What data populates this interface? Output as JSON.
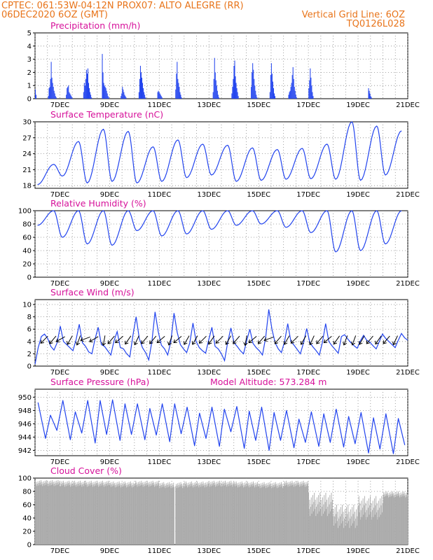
{
  "header": {
    "line1_left": "CPTEC:   061:53W-04:12N   PROX07: ALTO ALEGRE (RR)",
    "line2_left": "06DEC2020 6OZ (GMT)",
    "line2_right": "Vertical Grid Line: 6OZ",
    "line3_right": "TQ0126L028"
  },
  "colors": {
    "header": "#e8741a",
    "title": "#d6119a",
    "line": "#2244ee",
    "bar": "#2244ee",
    "cloud": "#aaaaaa",
    "wind_arrow": "#000000"
  },
  "chart_data": [
    {
      "type": "bar",
      "title": "Precipitation (mm/h)",
      "x_ticks": [
        "7DEC",
        "9DEC",
        "11DEC",
        "13DEC",
        "15DEC",
        "17DEC",
        "19DEC",
        "21DEC"
      ],
      "y_ticks": [
        "0",
        "1",
        "2",
        "3",
        "4",
        "5"
      ],
      "ylim": [
        0,
        5
      ],
      "grid": true,
      "note": "hourly precipitation, values from 06DEC 00Z",
      "values": [
        0.7,
        0.3,
        0,
        0,
        0,
        0,
        0,
        0,
        0,
        0,
        0,
        0,
        0,
        0,
        0,
        0,
        0,
        0,
        0.2,
        0.8,
        0.9,
        1.5,
        2.8,
        1.6,
        1.2,
        0.9,
        0.6,
        0.4,
        0.2,
        0.1,
        0,
        0,
        0,
        0,
        0,
        0,
        0,
        0,
        0,
        0,
        0,
        0,
        0,
        0.3,
        0.8,
        0.9,
        1.0,
        0.5,
        0.4,
        0.3,
        0.2,
        0.1,
        0,
        0,
        0,
        0,
        0,
        0,
        0,
        0,
        0,
        0,
        0,
        0,
        0,
        0,
        0,
        0.5,
        1.2,
        1.0,
        1.5,
        2.2,
        1.9,
        2.3,
        1.2,
        0.8,
        0.5,
        0.3,
        0.1,
        0,
        0,
        0,
        0,
        0,
        0,
        0,
        0,
        0,
        0,
        0,
        0,
        0,
        0,
        3.4,
        2.0,
        1.2,
        1.0,
        0.9,
        0.8,
        0.6,
        0.4,
        0.2,
        0.1,
        0,
        0,
        0,
        0,
        0,
        0,
        0,
        0,
        0,
        0,
        0,
        0,
        0,
        0,
        0,
        0,
        0.2,
        0.4,
        0.9,
        0.7,
        0.5,
        0.3,
        0.2,
        0.1,
        0,
        0,
        0,
        0,
        0,
        0,
        0,
        0,
        0,
        0,
        0,
        0,
        0,
        0,
        0,
        0,
        0,
        0.5,
        1.5,
        2.5,
        2.0,
        1.6,
        1.2,
        0.8,
        0.5,
        0.3,
        0.1,
        0,
        0,
        0,
        0,
        0,
        0,
        0,
        0,
        0,
        0,
        0,
        0,
        0,
        0,
        0,
        0,
        0.5,
        0.6,
        0.5,
        0.4,
        0.3,
        0.2,
        0.1,
        0,
        0,
        0,
        0,
        0,
        0,
        0,
        0,
        0,
        0,
        0,
        0,
        0,
        0,
        0,
        0,
        0,
        0,
        0.7,
        1.9,
        2.8,
        1.5,
        1.2,
        0.9,
        0.5,
        0.3,
        0.1,
        0,
        0,
        0,
        0,
        0,
        0,
        0,
        0,
        0,
        0,
        0,
        0,
        0,
        0,
        0,
        0,
        0,
        0,
        0,
        0,
        0,
        0,
        0,
        0,
        0,
        0,
        0,
        0,
        0,
        0,
        0,
        0,
        0,
        0,
        0,
        0,
        0,
        0,
        0,
        0,
        0,
        0,
        0,
        0.5,
        1.5,
        3.1,
        2.0,
        1.4,
        1.0,
        0.6,
        0.3,
        0.1,
        0,
        0,
        0,
        0,
        0,
        0,
        0,
        0,
        0,
        0,
        0,
        0,
        0,
        0,
        0,
        0,
        0,
        0.4,
        0.9,
        1.5,
        2.5,
        2.9,
        1.7,
        1.2,
        0.8,
        0.5,
        0.2,
        0,
        0,
        0,
        0,
        0,
        0,
        0,
        0,
        0,
        0,
        0,
        0,
        0,
        0,
        0,
        0,
        0,
        0.9,
        2.0,
        2.7,
        2.2,
        1.5,
        1.0,
        0.6,
        0.3,
        0.1,
        0,
        0,
        0,
        0,
        0,
        0,
        0,
        0,
        0,
        0,
        0,
        0,
        0,
        0,
        0,
        0,
        0,
        0.5,
        1.8,
        2.7,
        1.9,
        1.3,
        0.8,
        0.4,
        0.2,
        0,
        0,
        0,
        0,
        0,
        0,
        0,
        0,
        0,
        0,
        0,
        0,
        0,
        0,
        0,
        0,
        0,
        0,
        0.3,
        0.5,
        0.6,
        0.9,
        1.2,
        1.8,
        2.4,
        1.5,
        0.9,
        0.6,
        0.3,
        0.1,
        0,
        0,
        0,
        0,
        0,
        0,
        0,
        0,
        0,
        0,
        0,
        0,
        0,
        0,
        0,
        0,
        0.8,
        1.4,
        2.3,
        1.6,
        1.0,
        0.5,
        0.2,
        0,
        0,
        0,
        0,
        0,
        0,
        0,
        0,
        0,
        0,
        0,
        0,
        0,
        0,
        0,
        0,
        0,
        0,
        0,
        0,
        0,
        0,
        0,
        0,
        0,
        0,
        0,
        0,
        0,
        0,
        0,
        0,
        0,
        0,
        0,
        0,
        0,
        0,
        0,
        0,
        0,
        0,
        0,
        0,
        0,
        0,
        0,
        0,
        0,
        0,
        0,
        0,
        0,
        0,
        0,
        0,
        0,
        0,
        0,
        0,
        0,
        0,
        0,
        0,
        0,
        0,
        0,
        0,
        0,
        0,
        0,
        0,
        0,
        0,
        0,
        0,
        0.8,
        0.6,
        0.4,
        0.2,
        0.1,
        0,
        0,
        0,
        0,
        0,
        0,
        0,
        0,
        0,
        0,
        0,
        0,
        0,
        0,
        0,
        0,
        0,
        0,
        0,
        0,
        0,
        0,
        0,
        0,
        0,
        0,
        0,
        0,
        0,
        0,
        0,
        0,
        0,
        0,
        0,
        0,
        0,
        0,
        0,
        0,
        0,
        0,
        0,
        0,
        0,
        0,
        0,
        0,
        0,
        0
      ]
    },
    {
      "type": "line",
      "title": "Surface Temperature (nC)",
      "x_ticks": [
        "7DEC",
        "9DEC",
        "11DEC",
        "13DEC",
        "15DEC",
        "17DEC",
        "19DEC",
        "21DEC"
      ],
      "y_ticks": [
        "18",
        "21",
        "24",
        "27",
        "30"
      ],
      "ylim": [
        17.5,
        30
      ],
      "grid": true,
      "note": "daily extremes (min, max) from 06DEC",
      "values": [
        [
          22,
          18.2
        ],
        [
          26.3,
          19.8
        ],
        [
          28.6,
          18.5
        ],
        [
          28.2,
          18.8
        ],
        [
          25.3,
          18.5
        ],
        [
          26.6,
          18.8
        ],
        [
          25.8,
          19.5
        ],
        [
          25.6,
          20.0
        ],
        [
          25.1,
          18.8
        ],
        [
          24.8,
          19.0
        ],
        [
          25.0,
          19.2
        ],
        [
          25.8,
          19.3
        ],
        [
          30.0,
          19.2
        ],
        [
          29.2,
          19.0
        ],
        [
          28.3,
          20
        ]
      ]
    },
    {
      "type": "line",
      "title": "Relative Humidity (%)",
      "x_ticks": [
        "7DEC",
        "9DEC",
        "11DEC",
        "13DEC",
        "15DEC",
        "17DEC",
        "19DEC",
        "21DEC"
      ],
      "y_ticks": [
        "0",
        "20",
        "40",
        "60",
        "80",
        "100"
      ],
      "ylim": [
        0,
        100
      ],
      "grid": true,
      "note": "daily (max, min) from 06DEC",
      "values": [
        [
          100,
          78
        ],
        [
          100,
          60
        ],
        [
          100,
          50
        ],
        [
          100,
          48
        ],
        [
          100,
          70
        ],
        [
          100,
          62
        ],
        [
          100,
          65
        ],
        [
          100,
          72
        ],
        [
          100,
          78
        ],
        [
          100,
          80
        ],
        [
          100,
          75
        ],
        [
          100,
          67
        ],
        [
          100,
          38
        ],
        [
          100,
          40
        ],
        [
          100,
          50
        ]
      ]
    },
    {
      "type": "line",
      "title": "Surface Wind (m/s)",
      "x_ticks": [
        "7DEC",
        "9DEC",
        "11DEC",
        "13DEC",
        "15DEC",
        "17DEC",
        "19DEC",
        "21DEC"
      ],
      "y_ticks": [
        "0",
        "2",
        "4",
        "6",
        "8",
        "10"
      ],
      "ylim": [
        0,
        10.8
      ],
      "grid": true,
      "note": "wind speed every 3 h from 06DEC; vectors as arrows",
      "values": [
        0.3,
        3.0,
        4.8,
        5.2,
        4.5,
        3.2,
        2.6,
        3.8,
        6.5,
        4.0,
        3.5,
        3.0,
        2.5,
        4.3,
        6.8,
        3.8,
        3.2,
        2.3,
        2.0,
        4.4,
        6.3,
        3.5,
        3.2,
        2.5,
        1.8,
        4.1,
        5.6,
        3.0,
        2.8,
        2.0,
        1.5,
        5.0,
        8.0,
        4.5,
        3.0,
        2.2,
        1.0,
        4.0,
        8.8,
        5.6,
        3.4,
        2.8,
        1.8,
        4.0,
        8.6,
        5.5,
        3.5,
        2.8,
        2.2,
        3.8,
        7.0,
        4.0,
        3.0,
        2.5,
        2.1,
        4.3,
        6.3,
        3.2,
        2.8,
        2.0,
        0.9,
        3.9,
        6.2,
        3.8,
        3.2,
        2.5,
        2.0,
        4.1,
        6.0,
        3.7,
        3.0,
        2.5,
        1.8,
        4.6,
        9.2,
        6.0,
        3.8,
        2.8,
        2.2,
        4.0,
        6.9,
        4.0,
        3.4,
        2.7,
        2.0,
        3.8,
        6.1,
        3.8,
        3.1,
        2.5,
        1.8,
        3.9,
        6.9,
        4.0,
        3.3,
        2.7,
        2.1,
        4.8,
        5.1,
        4.4,
        3.8,
        3.3,
        2.9,
        4.1,
        5.0,
        4.2,
        3.9,
        3.3,
        2.8,
        4.0,
        5.2,
        4.5,
        4.0,
        3.5,
        3.0,
        4.2,
        5.3,
        4.6,
        4.2
      ],
      "arrows_deg": [
        225,
        230,
        210,
        240,
        250,
        200,
        210,
        260,
        230,
        220,
        235,
        245,
        230,
        230,
        220,
        250,
        220,
        240,
        240,
        225,
        235,
        225,
        240,
        230,
        260,
        220,
        230,
        200,
        230,
        240,
        225,
        240,
        245,
        230,
        220,
        235,
        250,
        250,
        240,
        230,
        235,
        230,
        245
      ]
    },
    {
      "type": "line",
      "title": "Surface Pressure (hPa)",
      "annotation": "Model Altitude: 573.284 m",
      "x_ticks": [
        "7DEC",
        "9DEC",
        "11DEC",
        "13DEC",
        "15DEC",
        "17DEC",
        "19DEC",
        "21DEC"
      ],
      "y_ticks": [
        "942",
        "944",
        "946",
        "948",
        "950"
      ],
      "ylim": [
        941.2,
        951.2
      ],
      "grid": true,
      "note": "semi-diurnal pressure, daily peak values from 06DEC",
      "values": [
        [
          949.2,
          943.8,
          947.3,
          945.0
        ],
        [
          949.5,
          943.6,
          947.8,
          944.6
        ],
        [
          949.5,
          943.1,
          949.5,
          944.4
        ],
        [
          949.6,
          943.5,
          949.0,
          944.4
        ],
        [
          949.0,
          943.6,
          948.3,
          944.3
        ],
        [
          949.0,
          943.3,
          949.0,
          944.5
        ],
        [
          948.5,
          942.7,
          947.6,
          943.8
        ],
        [
          948.5,
          942.6,
          948.2,
          944.8
        ],
        [
          948.6,
          942.3,
          947.9,
          943.5
        ],
        [
          948.5,
          942.0,
          947.7,
          943.5
        ],
        [
          948.0,
          942.4,
          946.7,
          943.2
        ],
        [
          947.8,
          942.6,
          947.5,
          943.2
        ],
        [
          948.2,
          942.5,
          947.1,
          943.0
        ],
        [
          947.7,
          941.6,
          946.9,
          942.2
        ],
        [
          947.5,
          941.5,
          946.8,
          942.8
        ]
      ]
    },
    {
      "type": "bar",
      "title": "Cloud Cover (%)",
      "x_ticks": [
        "7DEC",
        "9DEC",
        "11DEC",
        "13DEC",
        "15DEC",
        "17DEC",
        "19DEC",
        "21DEC"
      ],
      "y_ticks": [
        "0",
        "20",
        "40",
        "60",
        "80",
        "100"
      ],
      "ylim": [
        0,
        100
      ],
      "grid": true,
      "note": "daily cloud cover baseline from 06DEC; drops to 0 near 11DEC 12Z",
      "values": [
        97,
        96,
        96,
        95,
        96,
        94,
        95,
        96,
        95,
        94,
        96,
        78,
        60,
        73,
        80
      ]
    }
  ]
}
